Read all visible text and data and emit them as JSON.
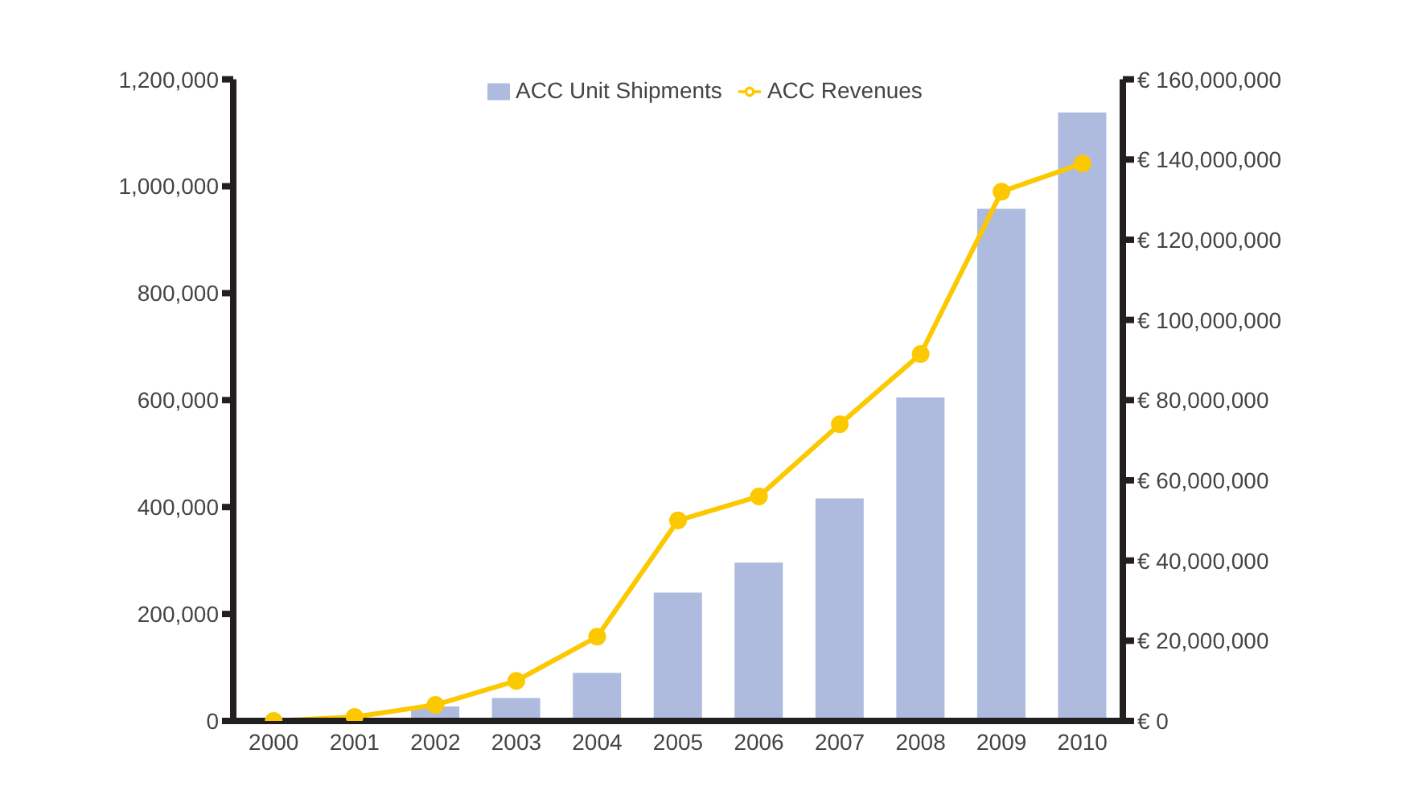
{
  "chart_data": {
    "type": "bar",
    "categories": [
      "2000",
      "2001",
      "2002",
      "2003",
      "2004",
      "2005",
      "2006",
      "2007",
      "2008",
      "2009",
      "2010"
    ],
    "series": [
      {
        "name": "ACC Unit Shipments",
        "color": "#aebbdf",
        "values": [
          0,
          null,
          27000,
          43000,
          90000,
          240000,
          296000,
          416000,
          605000,
          958000,
          1138000
        ]
      },
      {
        "name": "ACC Revenues",
        "type": "line",
        "axis": "y2",
        "color": "#fcc800",
        "values": [
          0,
          1000000,
          4000000,
          10000000,
          21000000,
          50000000,
          56000000,
          74000000,
          91500000,
          132000000,
          139000000
        ]
      }
    ],
    "ylim": [
      0,
      1200000
    ],
    "yticks": [
      {
        "value": 0,
        "label": "0"
      },
      {
        "value": 200000,
        "label": "200,000"
      },
      {
        "value": 400000,
        "label": "400,000"
      },
      {
        "value": 600000,
        "label": "600,000"
      },
      {
        "value": 800000,
        "label": "800,000"
      },
      {
        "value": 1000000,
        "label": "1,000,000"
      },
      {
        "value": 1200000,
        "label": "1,200,000"
      }
    ],
    "y2lim": [
      0,
      160000000
    ],
    "y2ticks": [
      {
        "value": 0,
        "label": "€ 0"
      },
      {
        "value": 20000000,
        "label": "€ 20,000,000"
      },
      {
        "value": 40000000,
        "label": "€ 40,000,000"
      },
      {
        "value": 60000000,
        "label": "€ 60,000,000"
      },
      {
        "value": 80000000,
        "label": "€ 80,000,000"
      },
      {
        "value": 100000000,
        "label": "€ 100,000,000"
      },
      {
        "value": 120000000,
        "label": "€ 120,000,000"
      },
      {
        "value": 140000000,
        "label": "€ 140,000,000"
      },
      {
        "value": 160000000,
        "label": "€ 160,000,000"
      }
    ],
    "legend": "top",
    "marker": "circle"
  }
}
